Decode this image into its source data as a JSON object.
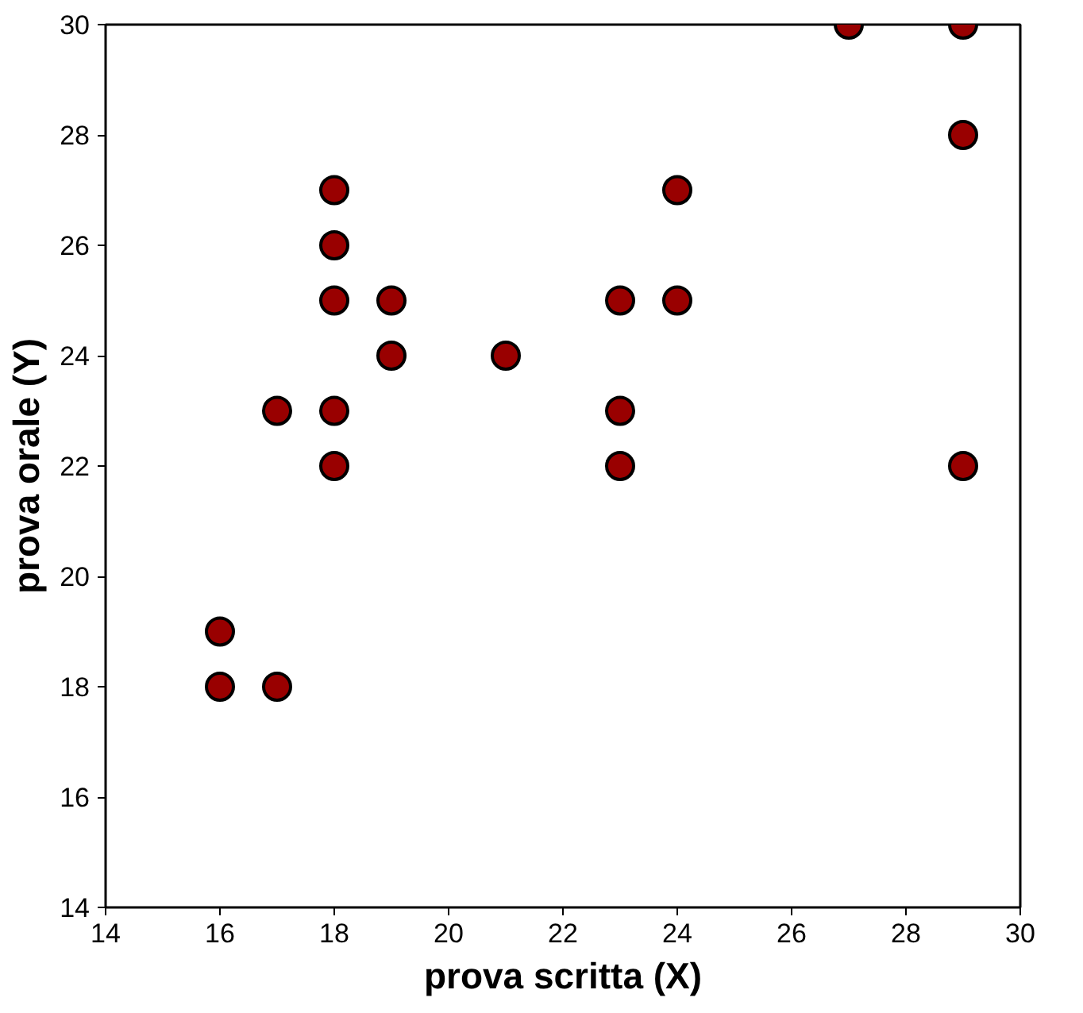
{
  "chart_data": {
    "type": "scatter",
    "xlabel": "prova scritta (X)",
    "ylabel": "prova orale (Y)",
    "x": [
      16,
      16,
      17,
      17,
      18,
      18,
      18,
      18,
      18,
      19,
      19,
      21,
      23,
      23,
      23,
      24,
      24,
      27,
      29,
      29,
      29
    ],
    "series": [
      {
        "color": "#990000",
        "values": [
          19,
          18,
          18,
          23,
          27,
          26,
          25,
          23,
          22,
          25,
          24,
          24,
          25,
          23,
          22,
          27,
          25,
          30,
          30,
          28,
          22
        ]
      }
    ],
    "xlim": [
      14,
      30
    ],
    "ylim": [
      14,
      30
    ],
    "xticks": [
      14,
      16,
      18,
      20,
      22,
      24,
      26,
      28,
      30
    ],
    "yticks": [
      14,
      16,
      18,
      20,
      22,
      24,
      26,
      28,
      30
    ],
    "grid": false,
    "marker": "circle"
  }
}
